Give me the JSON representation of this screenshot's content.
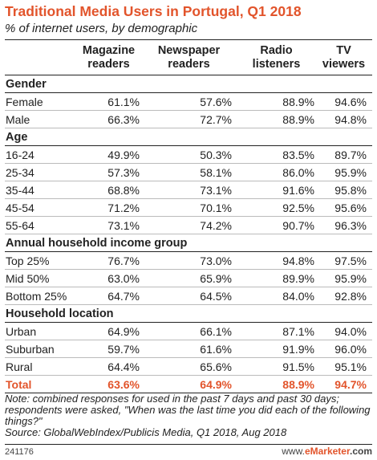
{
  "header": {
    "title": "Traditional Media Users in Portugal, Q1 2018",
    "subtitle": "% of internet users, by demographic"
  },
  "table": {
    "columns": [
      {
        "line1": "Magazine",
        "line2": "readers"
      },
      {
        "line1": "Newspaper",
        "line2": "readers"
      },
      {
        "line1": "Radio",
        "line2": "listeners"
      },
      {
        "line1": "TV",
        "line2": "viewers"
      }
    ],
    "sections": [
      {
        "label": "Gender",
        "rows": [
          {
            "label": "Female",
            "values": [
              "61.1%",
              "57.6%",
              "88.9%",
              "94.6%"
            ]
          },
          {
            "label": "Male",
            "values": [
              "66.3%",
              "72.7%",
              "88.9%",
              "94.8%"
            ]
          }
        ]
      },
      {
        "label": "Age",
        "rows": [
          {
            "label": "16-24",
            "values": [
              "49.9%",
              "50.3%",
              "83.5%",
              "89.7%"
            ]
          },
          {
            "label": "25-34",
            "values": [
              "57.3%",
              "58.1%",
              "86.0%",
              "95.9%"
            ]
          },
          {
            "label": "35-44",
            "values": [
              "68.8%",
              "73.1%",
              "91.6%",
              "95.8%"
            ]
          },
          {
            "label": "45-54",
            "values": [
              "71.2%",
              "70.1%",
              "92.5%",
              "95.6%"
            ]
          },
          {
            "label": "55-64",
            "values": [
              "73.1%",
              "74.2%",
              "90.7%",
              "96.3%"
            ]
          }
        ]
      },
      {
        "label": "Annual household income group",
        "rows": [
          {
            "label": "Top 25%",
            "values": [
              "76.7%",
              "73.0%",
              "94.8%",
              "97.5%"
            ]
          },
          {
            "label": "Mid 50%",
            "values": [
              "63.0%",
              "65.9%",
              "89.9%",
              "95.9%"
            ]
          },
          {
            "label": "Bottom 25%",
            "values": [
              "64.7%",
              "64.5%",
              "84.0%",
              "92.8%"
            ]
          }
        ]
      },
      {
        "label": "Household location",
        "rows": [
          {
            "label": "Urban",
            "values": [
              "64.9%",
              "66.1%",
              "87.1%",
              "94.0%"
            ]
          },
          {
            "label": "Suburban",
            "values": [
              "59.7%",
              "61.6%",
              "91.9%",
              "96.0%"
            ]
          },
          {
            "label": "Rural",
            "values": [
              "64.4%",
              "65.6%",
              "91.5%",
              "95.1%"
            ]
          }
        ]
      }
    ],
    "total": {
      "label": "Total",
      "values": [
        "63.6%",
        "64.9%",
        "88.9%",
        "94.7%"
      ]
    }
  },
  "footer": {
    "note": "Note: combined responses for used in the past 7 days and past 30 days; respondents were asked, \"When was the last time you did each of the following things?\"",
    "source": "Source: GlobalWebIndex/Publicis Media, Q1 2018, Aug 2018",
    "id": "241176",
    "brand_prefix": "www.",
    "brand_strong": "eMarketer",
    "brand_suffix": ".com"
  },
  "colors": {
    "accent": "#e2542b",
    "text": "#222222"
  },
  "chart_data": {
    "type": "table",
    "title": "Traditional Media Users in Portugal, Q1 2018",
    "subtitle": "% of internet users, by demographic",
    "columns": [
      "Magazine readers",
      "Newspaper readers",
      "Radio listeners",
      "TV viewers"
    ],
    "rows": [
      {
        "group": "Gender",
        "label": "Female",
        "values": [
          61.1,
          57.6,
          88.9,
          94.6
        ]
      },
      {
        "group": "Gender",
        "label": "Male",
        "values": [
          66.3,
          72.7,
          88.9,
          94.8
        ]
      },
      {
        "group": "Age",
        "label": "16-24",
        "values": [
          49.9,
          50.3,
          83.5,
          89.7
        ]
      },
      {
        "group": "Age",
        "label": "25-34",
        "values": [
          57.3,
          58.1,
          86.0,
          95.9
        ]
      },
      {
        "group": "Age",
        "label": "35-44",
        "values": [
          68.8,
          73.1,
          91.6,
          95.8
        ]
      },
      {
        "group": "Age",
        "label": "45-54",
        "values": [
          71.2,
          70.1,
          92.5,
          95.6
        ]
      },
      {
        "group": "Age",
        "label": "55-64",
        "values": [
          73.1,
          74.2,
          90.7,
          96.3
        ]
      },
      {
        "group": "Annual household income group",
        "label": "Top 25%",
        "values": [
          76.7,
          73.0,
          94.8,
          97.5
        ]
      },
      {
        "group": "Annual household income group",
        "label": "Mid 50%",
        "values": [
          63.0,
          65.9,
          89.9,
          95.9
        ]
      },
      {
        "group": "Annual household income group",
        "label": "Bottom 25%",
        "values": [
          64.7,
          64.5,
          84.0,
          92.8
        ]
      },
      {
        "group": "Household location",
        "label": "Urban",
        "values": [
          64.9,
          66.1,
          87.1,
          94.0
        ]
      },
      {
        "group": "Household location",
        "label": "Suburban",
        "values": [
          59.7,
          61.6,
          91.9,
          96.0
        ]
      },
      {
        "group": "Household location",
        "label": "Rural",
        "values": [
          64.4,
          65.6,
          91.5,
          95.1
        ]
      },
      {
        "group": "Total",
        "label": "Total",
        "values": [
          63.6,
          64.9,
          88.9,
          94.7
        ]
      }
    ]
  }
}
